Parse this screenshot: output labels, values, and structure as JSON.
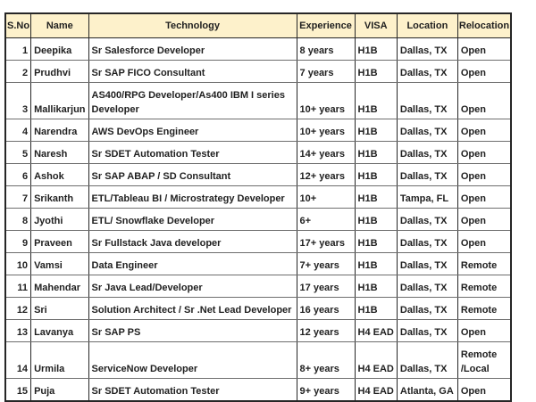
{
  "table": {
    "columns": [
      {
        "key": "sno",
        "label": "S.No"
      },
      {
        "key": "name",
        "label": "Name"
      },
      {
        "key": "technology",
        "label": "Technology"
      },
      {
        "key": "experience",
        "label": "Experience"
      },
      {
        "key": "visa",
        "label": "VISA"
      },
      {
        "key": "location",
        "label": "Location"
      },
      {
        "key": "relocation",
        "label": "Relocation"
      }
    ],
    "rows": [
      {
        "sno": "1",
        "name": "Deepika",
        "technology": "Sr Salesforce Developer",
        "experience": "8 years",
        "visa": "H1B",
        "location": "Dallas, TX",
        "relocation": "Open"
      },
      {
        "sno": "2",
        "name": "Prudhvi",
        "technology": "Sr SAP FICO Consultant",
        "experience": "7 years",
        "visa": "H1B",
        "location": "Dallas, TX",
        "relocation": "Open"
      },
      {
        "sno": "3",
        "name": "Mallikarjun",
        "technology": "AS400/RPG Developer/As400 IBM I series\nDeveloper",
        "experience": "10+ years",
        "visa": "H1B",
        "location": "Dallas, TX",
        "relocation": "Open"
      },
      {
        "sno": "4",
        "name": "Narendra",
        "technology": "AWS DevOps Engineer",
        "experience": "10+ years",
        "visa": "H1B",
        "location": "Dallas, TX",
        "relocation": "Open"
      },
      {
        "sno": "5",
        "name": "Naresh",
        "technology": "Sr SDET Automation Tester",
        "experience": "14+ years",
        "visa": "H1B",
        "location": "Dallas, TX",
        "relocation": "Open"
      },
      {
        "sno": "6",
        "name": "Ashok",
        "technology": "Sr SAP ABAP / SD Consultant",
        "experience": "12+ years",
        "visa": "H1B",
        "location": "Dallas, TX",
        "relocation": "Open"
      },
      {
        "sno": "7",
        "name": "Srikanth",
        "technology": "ETL/Tableau BI / Microstrategy Developer",
        "experience": "10+",
        "visa": "H1B",
        "location": "Tampa, FL",
        "relocation": "Open"
      },
      {
        "sno": "8",
        "name": "Jyothi",
        "technology": "ETL/ Snowflake Developer",
        "experience": "6+",
        "visa": "H1B",
        "location": "Dallas, TX",
        "relocation": "Open"
      },
      {
        "sno": "9",
        "name": "Praveen",
        "technology": "Sr Fullstack Java developer",
        "experience": "17+ years",
        "visa": "H1B",
        "location": "Dallas, TX",
        "relocation": "Open"
      },
      {
        "sno": "10",
        "name": "Vamsi",
        "technology": "Data Engineer",
        "experience": "7+ years",
        "visa": "H1B",
        "location": "Dallas, TX",
        "relocation": "Remote"
      },
      {
        "sno": "11",
        "name": "Mahendar",
        "technology": "Sr Java Lead/Developer",
        "experience": "17 years",
        "visa": "H1B",
        "location": "Dallas, TX",
        "relocation": "Remote"
      },
      {
        "sno": "12",
        "name": "Sri",
        "technology": "Solution Architect / Sr .Net Lead Developer",
        "experience": "16 years",
        "visa": "H1B",
        "location": "Dallas, TX",
        "relocation": "Remote"
      },
      {
        "sno": "13",
        "name": "Lavanya",
        "technology": "Sr SAP PS",
        "experience": "12 years",
        "visa": "H4 EAD",
        "location": "Dallas, TX",
        "relocation": "Open"
      },
      {
        "sno": "14",
        "name": "Urmila",
        "technology": "ServiceNow Developer",
        "experience": "8+ years",
        "visa": "H4 EAD",
        "location": "Dallas, TX",
        "relocation": "Remote\n/Local"
      },
      {
        "sno": "15",
        "name": "Puja",
        "technology": "Sr SDET Automation Tester",
        "experience": "9+ years",
        "visa": "H4 EAD",
        "location": "Atlanta, GA",
        "relocation": "Open"
      }
    ]
  },
  "colors": {
    "header_bg": "#fdf1cb",
    "grid_vertical": "#262626",
    "grid_horizontal": "#6e6e6e",
    "text": "#1f1f1f",
    "cell_bg": "#ffffff"
  }
}
